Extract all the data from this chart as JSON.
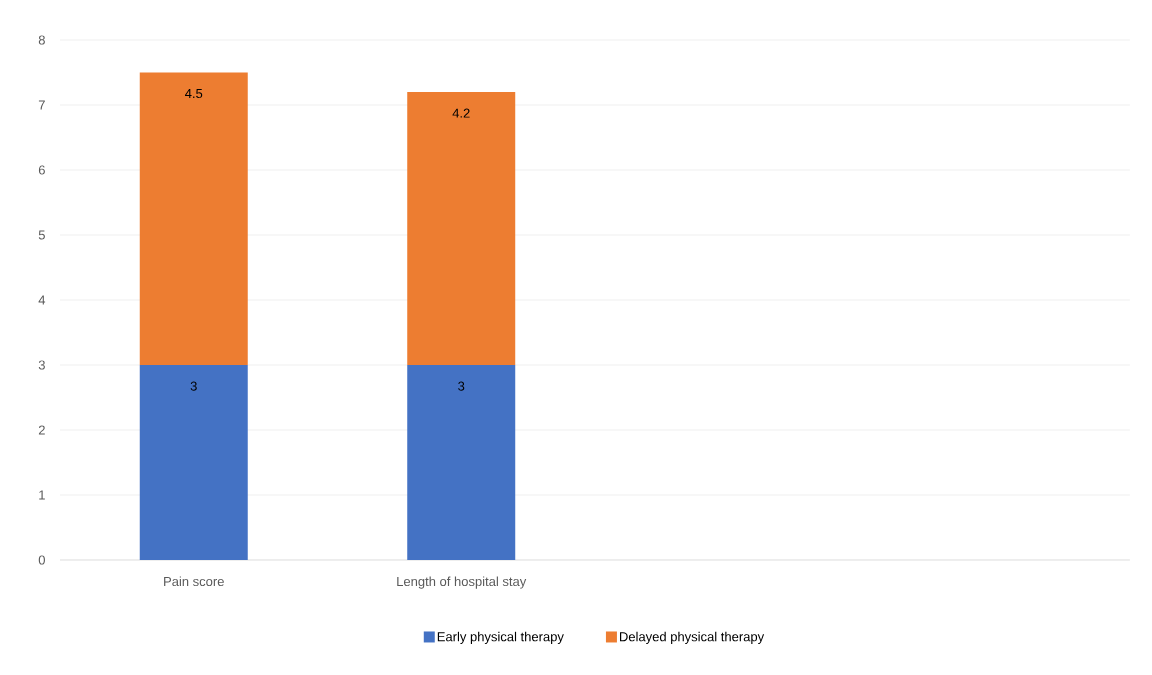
{
  "chart_data": {
    "type": "bar",
    "stacked": true,
    "categories": [
      "Pain score",
      "Length of hospital stay",
      null,
      null
    ],
    "series": [
      {
        "name": "Early physical therapy",
        "color": "#4472c4",
        "values": [
          3,
          3,
          null,
          null
        ]
      },
      {
        "name": "Delayed physical therapy",
        "color": "#ed7d31",
        "values": [
          4.5,
          4.2,
          null,
          null
        ]
      }
    ],
    "ylim": [
      0,
      8
    ],
    "yticks": [
      0,
      1,
      2,
      3,
      4,
      5,
      6,
      7,
      8
    ],
    "grid": "y",
    "legend": "bottom",
    "data_labels": true
  }
}
